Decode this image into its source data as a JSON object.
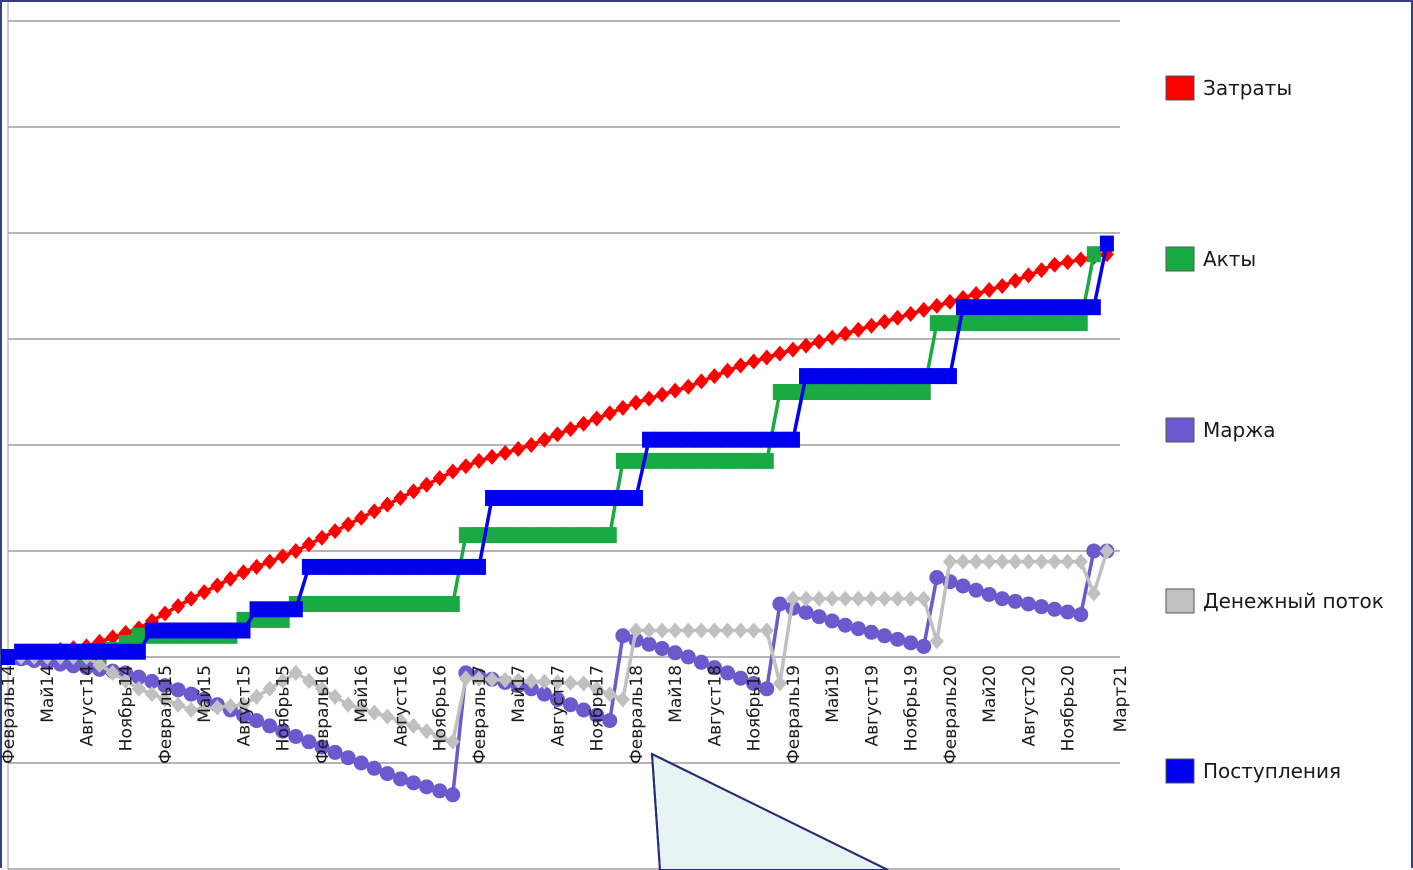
{
  "chart_data": {
    "type": "line",
    "title": "",
    "xlabel": "",
    "ylabel": "",
    "grid": true,
    "legend_position": "right",
    "x_tick_labels": [
      "Февраль14",
      "Май14",
      "Август14",
      "Ноябрь14",
      "Февраль15",
      "Май15",
      "Август15",
      "Ноябрь15",
      "Февраль16",
      "Май16",
      "Август16",
      "Ноябрь16",
      "Февраль17",
      "Май17",
      "Август17",
      "Ноябрь17",
      "Февраль18",
      "Май18",
      "Август18",
      "Ноябрь18",
      "Февраль19",
      "Май19",
      "Август19",
      "Ноябрь19",
      "Февраль20",
      "Май20",
      "Август20",
      "Ноябрь20",
      "Март21"
    ],
    "x_range_months": [
      0,
      85
    ],
    "y_range": [
      -2,
      6
    ],
    "series": [
      {
        "name": "Затраты",
        "color": "#ff0000",
        "marker": "diamond",
        "points": [
          [
            0,
            0
          ],
          [
            6,
            0.1
          ],
          [
            10,
            0.27
          ],
          [
            14,
            0.55
          ],
          [
            18,
            0.8
          ],
          [
            22,
            1.0
          ],
          [
            26,
            1.25
          ],
          [
            30,
            1.5
          ],
          [
            34,
            1.75
          ],
          [
            36,
            1.85
          ],
          [
            40,
            2.0
          ],
          [
            44,
            2.2
          ],
          [
            48,
            2.4
          ],
          [
            52,
            2.55
          ],
          [
            56,
            2.75
          ],
          [
            60,
            2.9
          ],
          [
            64,
            3.05
          ],
          [
            68,
            3.2
          ],
          [
            72,
            3.35
          ],
          [
            76,
            3.5
          ],
          [
            80,
            3.7
          ],
          [
            84,
            3.8
          ]
        ]
      },
      {
        "name": "Акты",
        "color": "#1aaa44",
        "marker": "square",
        "points": [
          [
            0,
            0
          ],
          [
            7,
            0
          ],
          [
            10,
            0.2
          ],
          [
            17,
            0.2
          ],
          [
            18,
            0.35
          ],
          [
            21,
            0.35
          ],
          [
            22,
            0.5
          ],
          [
            34,
            0.5
          ],
          [
            35,
            1.15
          ],
          [
            46,
            1.15
          ],
          [
            47,
            1.85
          ],
          [
            58,
            1.85
          ],
          [
            59,
            2.5
          ],
          [
            70,
            2.5
          ],
          [
            71,
            3.15
          ],
          [
            82,
            3.15
          ],
          [
            83,
            3.8
          ]
        ]
      },
      {
        "name": "Маржа",
        "color": "#6a5acd",
        "marker": "circle",
        "points": [
          [
            0,
            0
          ],
          [
            9,
            -0.15
          ],
          [
            14,
            -0.35
          ],
          [
            18,
            -0.55
          ],
          [
            22,
            -0.75
          ],
          [
            26,
            -0.95
          ],
          [
            30,
            -1.15
          ],
          [
            34,
            -1.3
          ],
          [
            35,
            -0.15
          ],
          [
            40,
            -0.3
          ],
          [
            46,
            -0.6
          ],
          [
            47,
            0.2
          ],
          [
            52,
            0
          ],
          [
            58,
            -0.3
          ],
          [
            59,
            0.5
          ],
          [
            64,
            0.3
          ],
          [
            70,
            0.1
          ],
          [
            71,
            0.75
          ],
          [
            76,
            0.55
          ],
          [
            82,
            0.4
          ],
          [
            83,
            1.0
          ],
          [
            84,
            1.0
          ]
        ]
      },
      {
        "name": "Денежный поток",
        "color": "#c0c0c0",
        "marker": "diamond",
        "points": [
          [
            0,
            0
          ],
          [
            6,
            0
          ],
          [
            10,
            -0.3
          ],
          [
            14,
            -0.5
          ],
          [
            18,
            -0.45
          ],
          [
            22,
            -0.15
          ],
          [
            26,
            -0.45
          ],
          [
            30,
            -0.6
          ],
          [
            34,
            -0.8
          ],
          [
            35,
            -0.2
          ],
          [
            44,
            -0.25
          ],
          [
            47,
            -0.4
          ],
          [
            48,
            0.25
          ],
          [
            58,
            0.25
          ],
          [
            59,
            -0.25
          ],
          [
            60,
            0.55
          ],
          [
            70,
            0.55
          ],
          [
            71,
            0.15
          ],
          [
            72,
            0.9
          ],
          [
            82,
            0.9
          ],
          [
            83,
            0.6
          ],
          [
            84,
            1.0
          ]
        ]
      },
      {
        "name": "Поступления",
        "color": "#0000ee",
        "marker": "square",
        "points": [
          [
            0,
            0
          ],
          [
            1,
            0.05
          ],
          [
            10,
            0.05
          ],
          [
            11,
            0.25
          ],
          [
            18,
            0.25
          ],
          [
            19,
            0.45
          ],
          [
            22,
            0.45
          ],
          [
            23,
            0.85
          ],
          [
            36,
            0.85
          ],
          [
            37,
            1.5
          ],
          [
            48,
            1.5
          ],
          [
            49,
            2.05
          ],
          [
            60,
            2.05
          ],
          [
            61,
            2.65
          ],
          [
            72,
            2.65
          ],
          [
            73,
            3.3
          ],
          [
            83,
            3.3
          ],
          [
            84,
            3.9
          ]
        ]
      }
    ]
  }
}
